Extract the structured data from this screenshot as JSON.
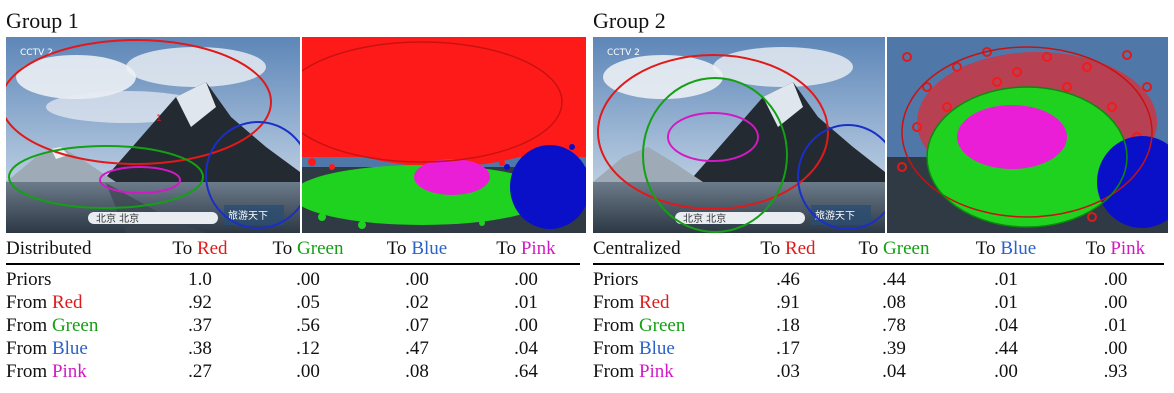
{
  "groups": [
    {
      "title": "Group 1",
      "table": {
        "header": [
          "Distributed",
          "To ",
          "To ",
          "To ",
          "To "
        ],
        "header_colored": [
          "",
          "Red",
          "Green",
          "Blue",
          "Pink"
        ],
        "rows": [
          {
            "prefix": "Priors",
            "color_word": "",
            "values": [
              "1.0",
              ".00",
              ".00",
              ".00"
            ]
          },
          {
            "prefix": "From ",
            "color_word": "Red",
            "values": [
              ".92",
              ".05",
              ".02",
              ".01"
            ]
          },
          {
            "prefix": "From ",
            "color_word": "Green",
            "values": [
              ".37",
              ".56",
              ".07",
              ".00"
            ]
          },
          {
            "prefix": "From ",
            "color_word": "Blue",
            "values": [
              ".38",
              ".12",
              ".47",
              ".04"
            ]
          },
          {
            "prefix": "From ",
            "color_word": "Pink",
            "values": [
              ".27",
              ".00",
              ".08",
              ".64"
            ]
          }
        ]
      },
      "screen_text": [
        "CCTV 2",
        "北京 北京",
        "旅游天下"
      ]
    },
    {
      "title": "Group 2",
      "table": {
        "header": [
          "Centralized",
          "To ",
          "To ",
          "To ",
          "To "
        ],
        "header_colored": [
          "",
          "Red",
          "Green",
          "Blue",
          "Pink"
        ],
        "rows": [
          {
            "prefix": "Priors",
            "color_word": "",
            "values": [
              ".46",
              ".44",
              ".01",
              ".00"
            ]
          },
          {
            "prefix": "From ",
            "color_word": "Red",
            "values": [
              ".91",
              ".08",
              ".01",
              ".00"
            ]
          },
          {
            "prefix": "From ",
            "color_word": "Green",
            "values": [
              ".18",
              ".78",
              ".04",
              ".01"
            ]
          },
          {
            "prefix": "From ",
            "color_word": "Blue",
            "values": [
              ".17",
              ".39",
              ".44",
              ".00"
            ]
          },
          {
            "prefix": "From ",
            "color_word": "Pink",
            "values": [
              ".03",
              ".04",
              ".00",
              ".93"
            ]
          }
        ]
      },
      "screen_text": [
        "CCTV 2",
        "北京 北京",
        "旅游天下"
      ]
    }
  ],
  "colors": {
    "red": "#e01a1a",
    "green": "#14a014",
    "blue": "#2a62c8",
    "pink": "#d21ac4"
  },
  "image_content": "mountain lake landscape frames with eye-fixation heatmap overlays and region ellipses"
}
